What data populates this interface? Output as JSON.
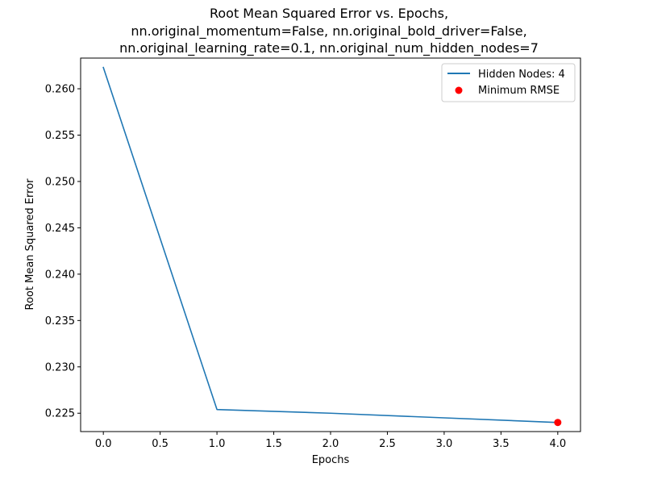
{
  "chart_data": {
    "type": "line",
    "title_lines": [
      "Root Mean Squared Error vs. Epochs,",
      "nn.original_momentum=False, nn.original_bold_driver=False,",
      "nn.original_learning_rate=0.1, nn.original_num_hidden_nodes=7"
    ],
    "xlabel": "Epochs",
    "ylabel": "Root Mean Squared Error",
    "xlim": [
      -0.2,
      4.2
    ],
    "ylim": [
      0.22302,
      0.26331
    ],
    "xticks": [
      0.0,
      0.5,
      1.0,
      1.5,
      2.0,
      2.5,
      3.0,
      3.5,
      4.0
    ],
    "xtick_labels": [
      "0.0",
      "0.5",
      "1.0",
      "1.5",
      "2.0",
      "2.5",
      "3.0",
      "3.5",
      "4.0"
    ],
    "yticks": [
      0.225,
      0.23,
      0.235,
      0.24,
      0.245,
      0.25,
      0.255,
      0.26
    ],
    "ytick_labels": [
      "0.225",
      "0.230",
      "0.235",
      "0.240",
      "0.245",
      "0.250",
      "0.255",
      "0.260"
    ],
    "grid": false,
    "legend_position": "upper right",
    "series": [
      {
        "name": "Hidden Nodes: 4",
        "color": "#1f77b4",
        "x": [
          0,
          1,
          2,
          3,
          4
        ],
        "y": [
          0.2623,
          0.2254,
          0.225,
          0.2245,
          0.224
        ]
      }
    ],
    "minimum_point": {
      "name": "Minimum RMSE",
      "color": "#ff0000",
      "x": 4,
      "y": 0.224
    }
  }
}
